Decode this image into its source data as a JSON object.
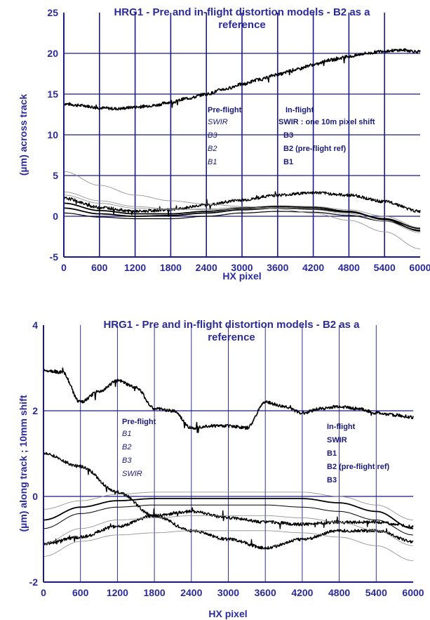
{
  "colors": {
    "axis": "#1a1a8a",
    "grid": "#1a1a8a",
    "text": "#2a2a9a",
    "curve": "#000000",
    "thin": "#888888"
  },
  "chart_data": [
    {
      "type": "line",
      "title_line1": "HRG1 - Pre and in-flight distortion models - B2 as a",
      "title_line2": "reference",
      "xlabel": "HX pixel",
      "ylabel": "(µm) across track",
      "xlim": [
        0,
        6000
      ],
      "ylim": [
        -5,
        25
      ],
      "xticks": [
        "0",
        "600",
        "1200",
        "1800",
        "2400",
        "3000",
        "3600",
        "4200",
        "4800",
        "5400",
        "6000"
      ],
      "yticks": [
        "-5",
        "0",
        "5",
        "10",
        "15",
        "20",
        "25"
      ],
      "legend_preflight": {
        "header": "Pre-flight",
        "items": [
          "SWIR",
          "B3",
          "B2",
          "B1"
        ]
      },
      "legend_inflight": {
        "header": "In-flight",
        "items": [
          "SWIR : one 10m pixel shift",
          "B3",
          "B2 (pre-flight ref)",
          "B1"
        ]
      },
      "series": [
        {
          "style": "noisy",
          "width": 1.6,
          "x": [
            0,
            300,
            600,
            900,
            1200,
            1500,
            1800,
            2100,
            2400,
            2700,
            3000,
            3300,
            3600,
            3900,
            4200,
            4500,
            4800,
            5100,
            5400,
            5700,
            6000
          ],
          "values": [
            13.8,
            13.6,
            13.3,
            13.2,
            13.4,
            13.6,
            14.0,
            14.5,
            15.0,
            15.6,
            16.2,
            16.8,
            17.4,
            18.0,
            18.6,
            19.2,
            19.6,
            20.0,
            20.3,
            20.4,
            20.2
          ]
        },
        {
          "style": "noisy",
          "width": 1.4,
          "x": [
            0,
            600,
            1200,
            1800,
            2400,
            3000,
            3600,
            4200,
            4800,
            5400,
            6000
          ],
          "values": [
            2.2,
            1.1,
            0.6,
            0.8,
            1.4,
            2.0,
            2.6,
            2.9,
            2.6,
            1.8,
            0.6
          ]
        },
        {
          "style": "smooth",
          "width": 1.8,
          "x": [
            0,
            600,
            1200,
            1800,
            2400,
            3000,
            3600,
            4200,
            4800,
            5400,
            6000
          ],
          "values": [
            1.6,
            0.7,
            0.3,
            0.3,
            0.6,
            1.0,
            1.2,
            1.1,
            0.6,
            -0.4,
            -1.8
          ]
        },
        {
          "style": "smooth",
          "width": 1.8,
          "x": [
            0,
            600,
            1200,
            1800,
            2400,
            3000,
            3600,
            4200,
            4800,
            5400,
            6000
          ],
          "values": [
            1.0,
            0.3,
            0.0,
            0.1,
            0.4,
            0.8,
            1.0,
            0.9,
            0.5,
            -0.3,
            -1.5
          ]
        },
        {
          "style": "smooth",
          "width": 1.2,
          "x": [
            0,
            600,
            1200,
            1800,
            2400,
            3000,
            3600,
            4200,
            4800,
            5400,
            6000
          ],
          "values": [
            0.4,
            -0.1,
            -0.3,
            -0.3,
            0.0,
            0.4,
            0.6,
            0.5,
            0.1,
            -0.6,
            -1.7
          ]
        },
        {
          "style": "thin",
          "width": 0.8,
          "x": [
            0,
            600,
            1200,
            1800,
            2400,
            3000,
            3600,
            4200,
            4800,
            5400,
            6000
          ],
          "values": [
            5.5,
            3.8,
            2.6,
            1.9,
            1.5,
            1.2,
            0.9,
            0.4,
            -0.5,
            -1.9,
            -4.0
          ]
        },
        {
          "style": "thin",
          "width": 0.8,
          "x": [
            0,
            600,
            1200,
            1800,
            2400,
            3000,
            3600,
            4200,
            4800,
            5400,
            6000
          ],
          "values": [
            3.0,
            1.9,
            1.2,
            0.9,
            0.8,
            0.9,
            1.0,
            0.8,
            0.3,
            -0.6,
            -2.0
          ]
        },
        {
          "style": "thin",
          "width": 0.8,
          "x": [
            0,
            600,
            1200,
            1800,
            2400,
            3000,
            3600,
            4200,
            4800,
            5400,
            6000
          ],
          "values": [
            2.6,
            1.6,
            1.0,
            0.8,
            0.9,
            1.1,
            1.3,
            1.2,
            0.8,
            0.0,
            -1.4
          ]
        }
      ]
    },
    {
      "type": "line",
      "title_line1": "HRG1 - Pre and in-flight distortion models - B2 as a",
      "title_line2": "reference",
      "xlabel": "HX pixel",
      "ylabel": "(µm) along track ; 10mm shift",
      "xlim": [
        0,
        6000
      ],
      "ylim": [
        -2,
        4
      ],
      "xticks": [
        "0",
        "600",
        "1200",
        "1800",
        "2400",
        "3000",
        "3600",
        "4200",
        "4800",
        "5400",
        "6000"
      ],
      "yticks": [
        "-2",
        "0",
        "2",
        "4"
      ],
      "legend_preflight": {
        "header": "Pre-flight",
        "items": [
          "B1",
          "B2",
          "B3",
          "SWIR"
        ]
      },
      "legend_inflight": {
        "header": "In-flight",
        "items": [
          "SWIR",
          "B1",
          "B2 (pre-flight ref)",
          "B3"
        ]
      },
      "series": [
        {
          "style": "noisy",
          "width": 1.6,
          "x": [
            0,
            300,
            600,
            900,
            1200,
            1500,
            1800,
            2100,
            2400,
            2700,
            3000,
            3300,
            3600,
            3900,
            4200,
            4500,
            4800,
            5100,
            5400,
            5700,
            6000
          ],
          "values": [
            2.95,
            2.9,
            2.2,
            2.45,
            2.7,
            2.55,
            2.05,
            2.0,
            1.6,
            1.65,
            1.65,
            1.6,
            2.2,
            2.1,
            1.95,
            2.05,
            2.1,
            2.05,
            1.95,
            1.9,
            1.85
          ]
        },
        {
          "style": "noisy",
          "width": 1.4,
          "x": [
            0,
            600,
            1200,
            1800,
            2400,
            3000,
            3600,
            4200,
            4800,
            5400,
            6000
          ],
          "values": [
            1.0,
            0.7,
            0.1,
            -0.45,
            -0.8,
            -1.0,
            -1.2,
            -1.0,
            -0.8,
            -0.8,
            -1.05
          ]
        },
        {
          "style": "noisy",
          "width": 1.4,
          "x": [
            0,
            600,
            1200,
            1800,
            2400,
            3000,
            3600,
            4200,
            4800,
            5400,
            6000
          ],
          "values": [
            -1.1,
            -0.95,
            -0.7,
            -0.45,
            -0.35,
            -0.5,
            -0.6,
            -0.65,
            -0.6,
            -0.6,
            -0.7
          ]
        },
        {
          "style": "smooth",
          "width": 1.8,
          "x": [
            0,
            600,
            1200,
            1800,
            2400,
            3000,
            3600,
            4200,
            4800,
            5400,
            6000
          ],
          "values": [
            -0.55,
            -0.25,
            -0.1,
            -0.05,
            -0.05,
            -0.05,
            -0.05,
            -0.05,
            -0.15,
            -0.35,
            -0.75
          ]
        },
        {
          "style": "smooth",
          "width": 1.0,
          "x": [
            0,
            600,
            1200,
            1800,
            2400,
            3000,
            3600,
            4200,
            4800,
            5400,
            6000
          ],
          "values": [
            -0.75,
            -0.4,
            -0.25,
            -0.2,
            -0.2,
            -0.2,
            -0.2,
            -0.25,
            -0.35,
            -0.55,
            -0.9
          ]
        },
        {
          "style": "thin",
          "width": 0.8,
          "x": [
            0,
            600,
            1200,
            1800,
            2400,
            3000,
            3600,
            4200,
            4800,
            5400,
            6000
          ],
          "values": [
            -0.3,
            -0.1,
            0.05,
            0.1,
            0.1,
            0.1,
            0.1,
            0.1,
            0.0,
            -0.2,
            -0.55
          ]
        },
        {
          "style": "thin",
          "width": 0.8,
          "x": [
            0,
            600,
            1200,
            1800,
            2400,
            3000,
            3600,
            4200,
            4800,
            5400,
            6000
          ],
          "values": [
            -1.1,
            -0.75,
            -0.55,
            -0.5,
            -0.45,
            -0.45,
            -0.45,
            -0.5,
            -0.6,
            -0.8,
            -1.15
          ]
        },
        {
          "style": "thin",
          "width": 0.8,
          "x": [
            0,
            600,
            1200,
            1800,
            2400,
            3000,
            3600,
            4200,
            4800,
            5400,
            6000
          ],
          "values": [
            -1.4,
            -1.05,
            -0.9,
            -0.85,
            -0.8,
            -0.8,
            -0.8,
            -0.85,
            -0.95,
            -1.15,
            -1.5
          ]
        }
      ]
    }
  ]
}
